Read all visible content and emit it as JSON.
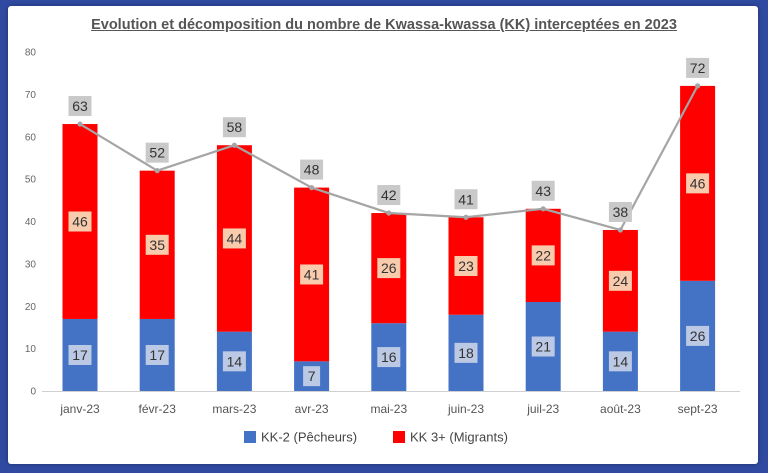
{
  "chart_data": {
    "type": "bar",
    "stacked": true,
    "title": "Evolution et décomposition du nombre de Kwassa-kwassa (KK) interceptées en 2023",
    "categories": [
      "janv-23",
      "févr-23",
      "mars-23",
      "avr-23",
      "mai-23",
      "juin-23",
      "juil-23",
      "août-23",
      "sept-23"
    ],
    "series": [
      {
        "name": "KK-2 (Pêcheurs)",
        "color": "#4472c4",
        "values": [
          17,
          17,
          14,
          7,
          16,
          18,
          21,
          14,
          26
        ]
      },
      {
        "name": "KK 3+ (Migrants)",
        "color": "#ff0000",
        "values": [
          46,
          35,
          44,
          41,
          26,
          23,
          22,
          24,
          46
        ]
      }
    ],
    "totals": [
      63,
      52,
      58,
      48,
      42,
      41,
      43,
      38,
      72
    ],
    "total_line_color": "#a5a5a5",
    "ylim": [
      0,
      80
    ],
    "yticks": [
      0,
      10,
      20,
      30,
      40,
      50,
      60,
      70,
      80
    ],
    "grid": false,
    "legend_position": "bottom"
  }
}
